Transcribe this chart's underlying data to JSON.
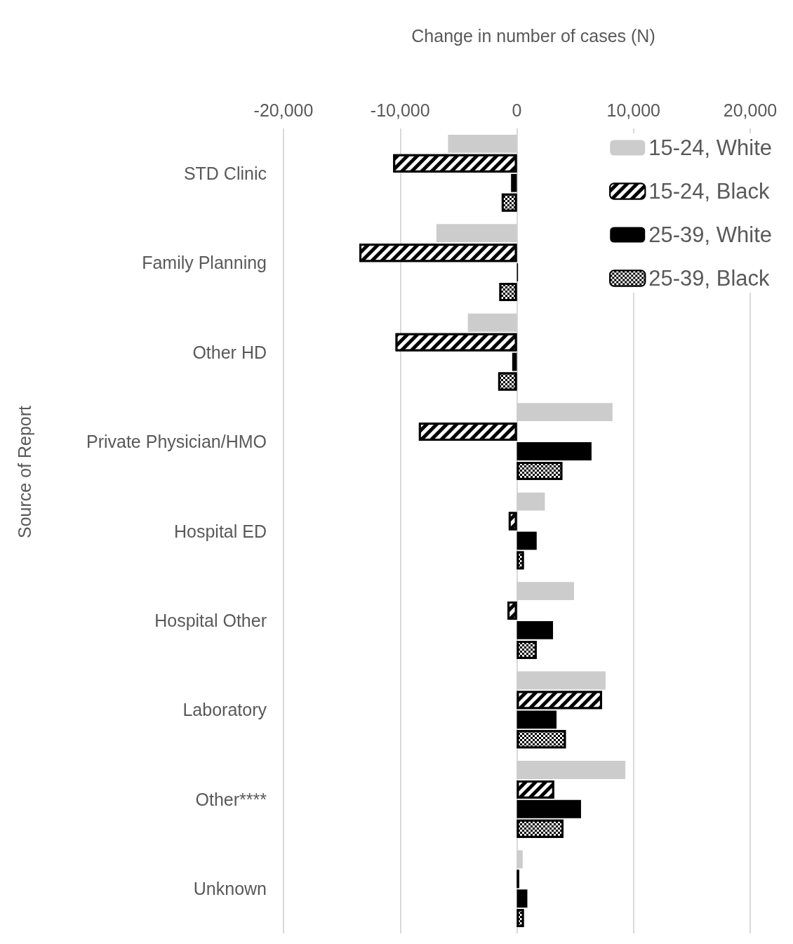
{
  "chart_data": {
    "type": "bar",
    "orientation": "horizontal",
    "xlabel": "Change in number of cases (N)",
    "ylabel": "Source of Report",
    "categories": [
      "STD Clinic",
      "Family Planning",
      "Other HD",
      "Private Physician/HMO",
      "Hospital ED",
      "Hospital Other",
      "Laboratory",
      "Other****",
      "Unknown"
    ],
    "series": [
      {
        "name": "15-24, White",
        "color": "#cccccc",
        "values": [
          -5900,
          -6900,
          -4200,
          8200,
          2400,
          4900,
          7600,
          9300,
          500
        ]
      },
      {
        "name": "15-24, Black",
        "color": "#000000",
        "values": [
          -10600,
          -13500,
          -10400,
          -8400,
          -700,
          -800,
          7300,
          3200,
          200
        ]
      },
      {
        "name": "25-39, White",
        "color": "#000000",
        "values": [
          -500,
          100,
          -400,
          6400,
          1700,
          3100,
          3400,
          5500,
          900
        ]
      },
      {
        "name": "25-39, Black",
        "color": "#000000",
        "values": [
          -1300,
          -1500,
          -1600,
          3900,
          600,
          1700,
          4200,
          4000,
          600
        ]
      }
    ],
    "xlim": [
      -20000,
      20000
    ],
    "xticks": [
      {
        "value": -20000,
        "label": "-20,000"
      },
      {
        "value": -10000,
        "label": "-10,000"
      },
      0,
      {
        "value": 10000,
        "label": "10,000"
      },
      {
        "value": 20000,
        "label": "20,000"
      }
    ],
    "grid": "x",
    "legend": "top right"
  }
}
